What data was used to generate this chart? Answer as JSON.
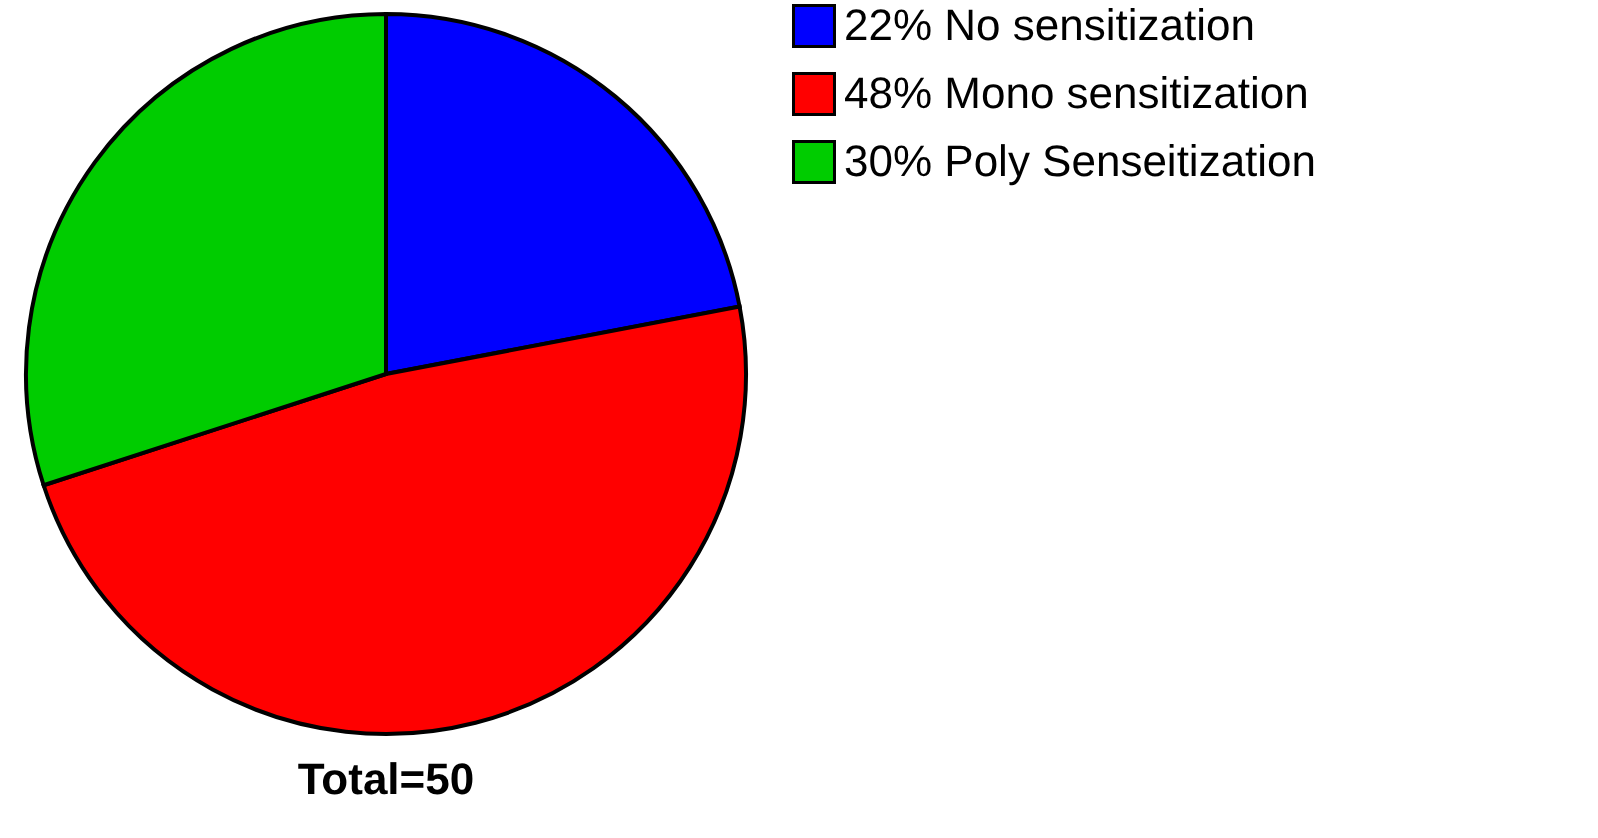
{
  "chart_data": {
    "type": "pie",
    "categories": [
      "No sensitization",
      "Mono sensitization",
      "Poly Senseitization"
    ],
    "values": [
      22,
      48,
      30
    ],
    "value_labels": [
      "22%",
      "48%",
      "30%"
    ],
    "colors": [
      "#0000ff",
      "#ff0000",
      "#00cc00"
    ],
    "legend": "right",
    "annotations": [
      "Total=50"
    ]
  }
}
